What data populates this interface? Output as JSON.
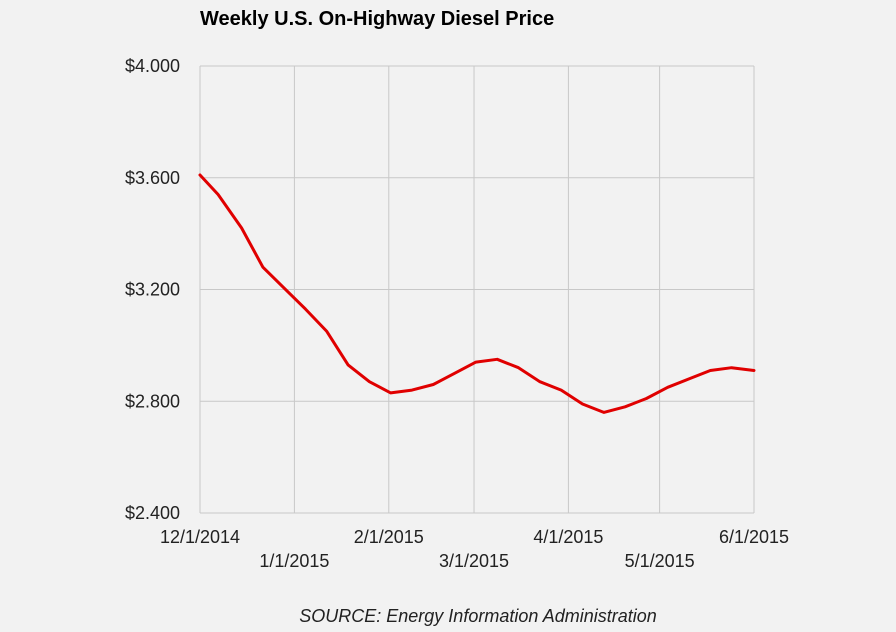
{
  "chart_data": {
    "type": "line",
    "title": "Weekly U.S. On-Highway Diesel Price",
    "source": "SOURCE: Energy Information Administration",
    "xlabel": "",
    "ylabel": "",
    "ylim": [
      2.4,
      4.0
    ],
    "yticks": [
      {
        "value": 2.4,
        "label": "$2.400"
      },
      {
        "value": 2.8,
        "label": "$2.800"
      },
      {
        "value": 3.2,
        "label": "$3.200"
      },
      {
        "value": 3.6,
        "label": "$3.600"
      },
      {
        "value": 4.0,
        "label": "$4.000"
      }
    ],
    "xlim": [
      0,
      26
    ],
    "xticks": [
      {
        "value": 0,
        "label": "12/1/2014",
        "row": 0
      },
      {
        "value": 4.43,
        "label": "1/1/2015",
        "row": 1
      },
      {
        "value": 8.86,
        "label": "2/1/2015",
        "row": 0
      },
      {
        "value": 12.86,
        "label": "3/1/2015",
        "row": 1
      },
      {
        "value": 17.29,
        "label": "4/1/2015",
        "row": 0
      },
      {
        "value": 21.57,
        "label": "5/1/2015",
        "row": 1
      },
      {
        "value": 26,
        "label": "6/1/2015",
        "row": 0
      }
    ],
    "series": [
      {
        "name": "Diesel price",
        "color": "#e00000",
        "x": [
          0,
          0.85,
          1.95,
          2.95,
          4.15,
          4.95,
          5.95,
          6.95,
          7.95,
          8.95,
          9.95,
          10.95,
          11.95,
          12.95,
          13.95,
          14.95,
          15.95,
          16.95,
          17.95,
          18.95,
          19.95,
          20.95,
          21.95,
          22.95,
          23.95,
          24.95,
          26
        ],
        "y": [
          3.61,
          3.54,
          3.42,
          3.28,
          3.19,
          3.13,
          3.05,
          2.93,
          2.87,
          2.83,
          2.84,
          2.86,
          2.9,
          2.94,
          2.95,
          2.92,
          2.87,
          2.84,
          2.79,
          2.76,
          2.78,
          2.81,
          2.85,
          2.88,
          2.91,
          2.92,
          2.91
        ]
      }
    ]
  },
  "colors": {
    "background": "#f2f2f2",
    "grid": "#c8c8c8",
    "line": "#e00000"
  }
}
